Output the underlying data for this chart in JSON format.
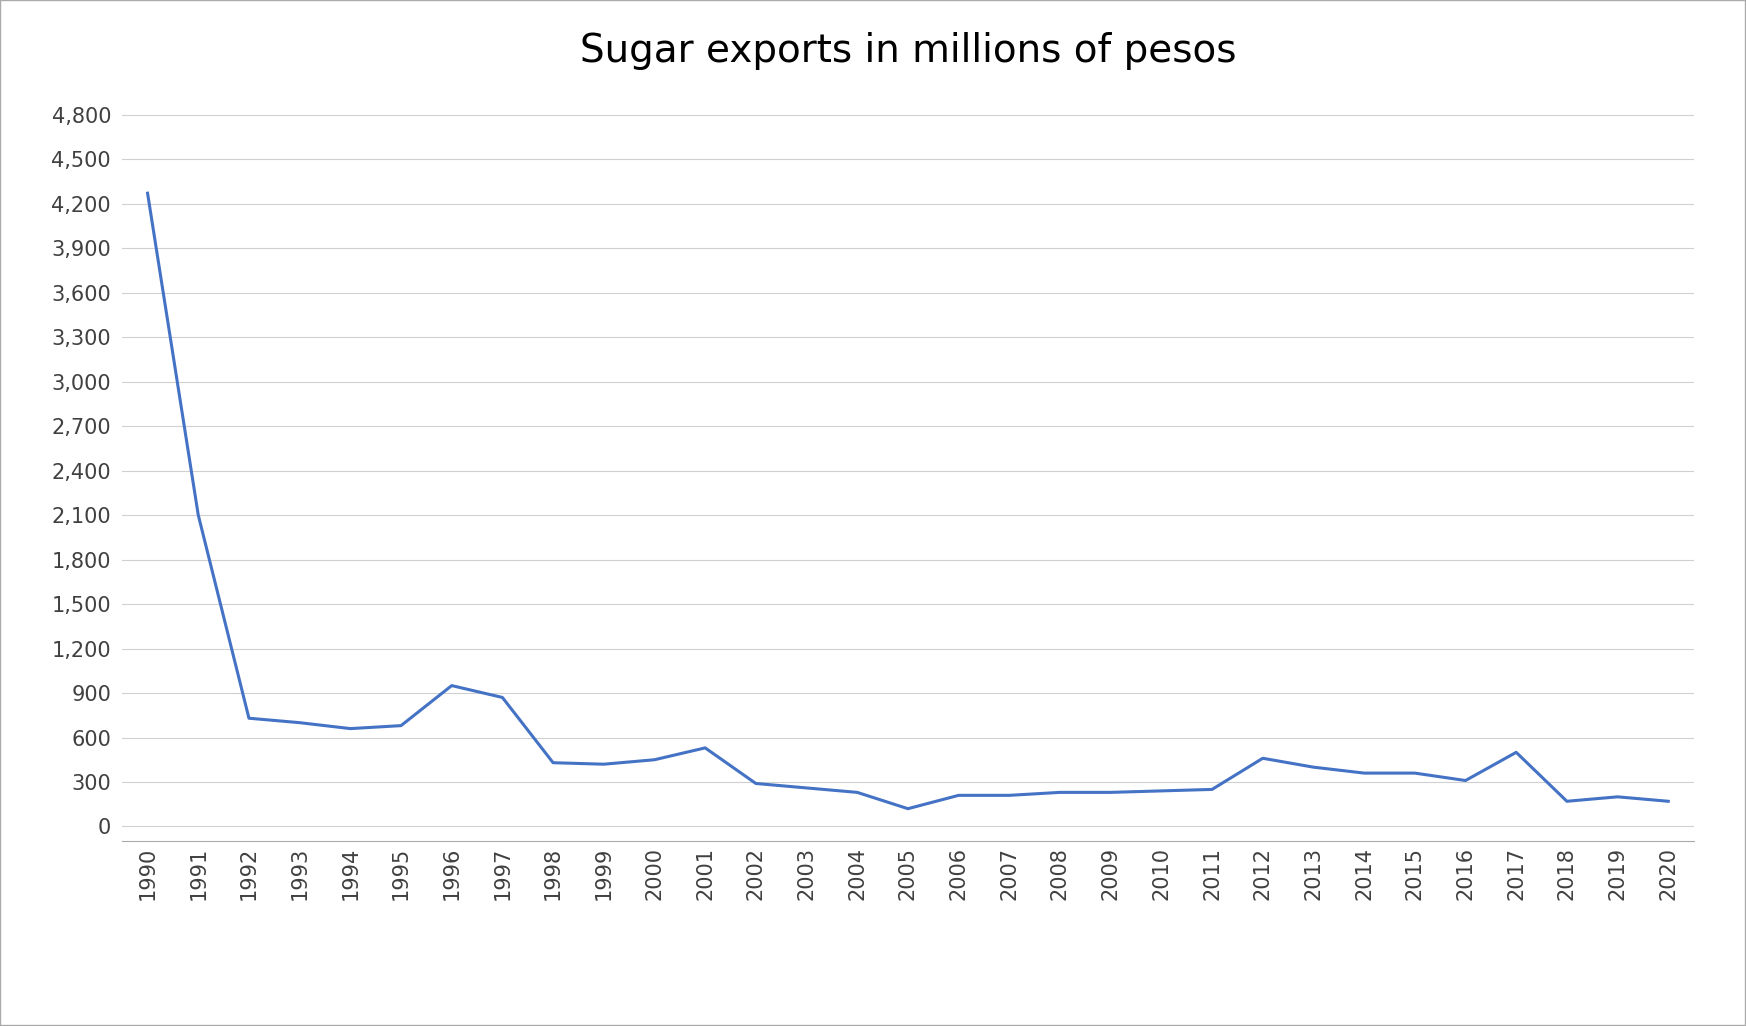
{
  "title": "Sugar exports in millions of pesos",
  "years": [
    1990,
    1991,
    1992,
    1993,
    1994,
    1995,
    1996,
    1997,
    1998,
    1999,
    2000,
    2001,
    2002,
    2003,
    2004,
    2005,
    2006,
    2007,
    2008,
    2009,
    2010,
    2011,
    2012,
    2013,
    2014,
    2015,
    2016,
    2017,
    2018,
    2019,
    2020
  ],
  "values": [
    4270,
    2100,
    730,
    700,
    660,
    680,
    950,
    870,
    430,
    420,
    450,
    530,
    290,
    260,
    230,
    120,
    210,
    210,
    230,
    230,
    240,
    250,
    460,
    400,
    360,
    360,
    310,
    500,
    170,
    200,
    170
  ],
  "line_color": "#4472C4",
  "background_color": "#ffffff",
  "plot_bg_color": "#ffffff",
  "grid_color": "#d0d0d0",
  "yticks": [
    0,
    300,
    600,
    900,
    1200,
    1500,
    1800,
    2100,
    2400,
    2700,
    3000,
    3300,
    3600,
    3900,
    4200,
    4500,
    4800
  ],
  "ytick_labels": [
    "0",
    "300",
    "600",
    "900",
    "1,200",
    "1,500",
    "1,800",
    "2,100",
    "2,400",
    "2,700",
    "3,000",
    "3,300",
    "3,600",
    "3,900",
    "4,200",
    "4,500",
    "4,800"
  ],
  "ylim": [
    -100,
    4950
  ],
  "title_fontsize": 28,
  "tick_fontsize": 15,
  "line_width": 2.2,
  "border_color": "#aaaaaa"
}
